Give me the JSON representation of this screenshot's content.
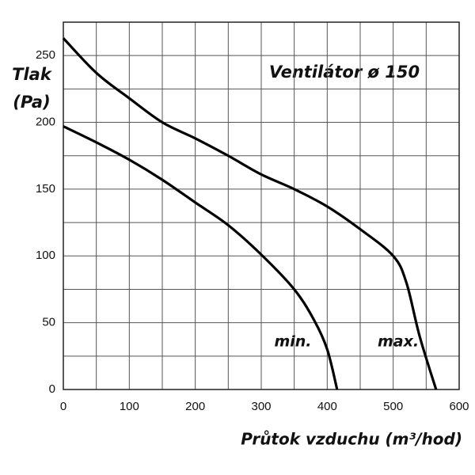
{
  "chart_data": {
    "type": "line",
    "title": "Ventilátor ø 150",
    "x_label": "Průtok vzduchu (m³/hod)",
    "y_label": [
      "Tlak",
      "(Pa)"
    ],
    "xlim": [
      0,
      600
    ],
    "ylim": [
      0,
      275
    ],
    "xticks": [
      0,
      100,
      200,
      300,
      400,
      500,
      600
    ],
    "yticks": [
      0,
      50,
      100,
      150,
      200,
      250
    ],
    "x_minor_grid": [
      50,
      150,
      250,
      350,
      450,
      550
    ],
    "y_minor_grid": [
      25,
      75,
      125,
      175,
      225,
      275
    ],
    "grid": true,
    "series": [
      {
        "name": "min.",
        "color": "#000000",
        "x": [
          0,
          50,
          100,
          150,
          200,
          250,
          300,
          350,
          380,
          400,
          415
        ],
        "values": [
          197,
          185,
          172,
          157,
          140,
          123,
          101,
          75,
          52,
          30,
          0
        ]
      },
      {
        "name": "max.",
        "color": "#000000",
        "x": [
          0,
          50,
          100,
          150,
          200,
          250,
          300,
          350,
          400,
          450,
          500,
          520,
          540,
          565
        ],
        "values": [
          263,
          237,
          218,
          200,
          188,
          175,
          161,
          150,
          137,
          120,
          100,
          80,
          40,
          0
        ]
      }
    ]
  }
}
